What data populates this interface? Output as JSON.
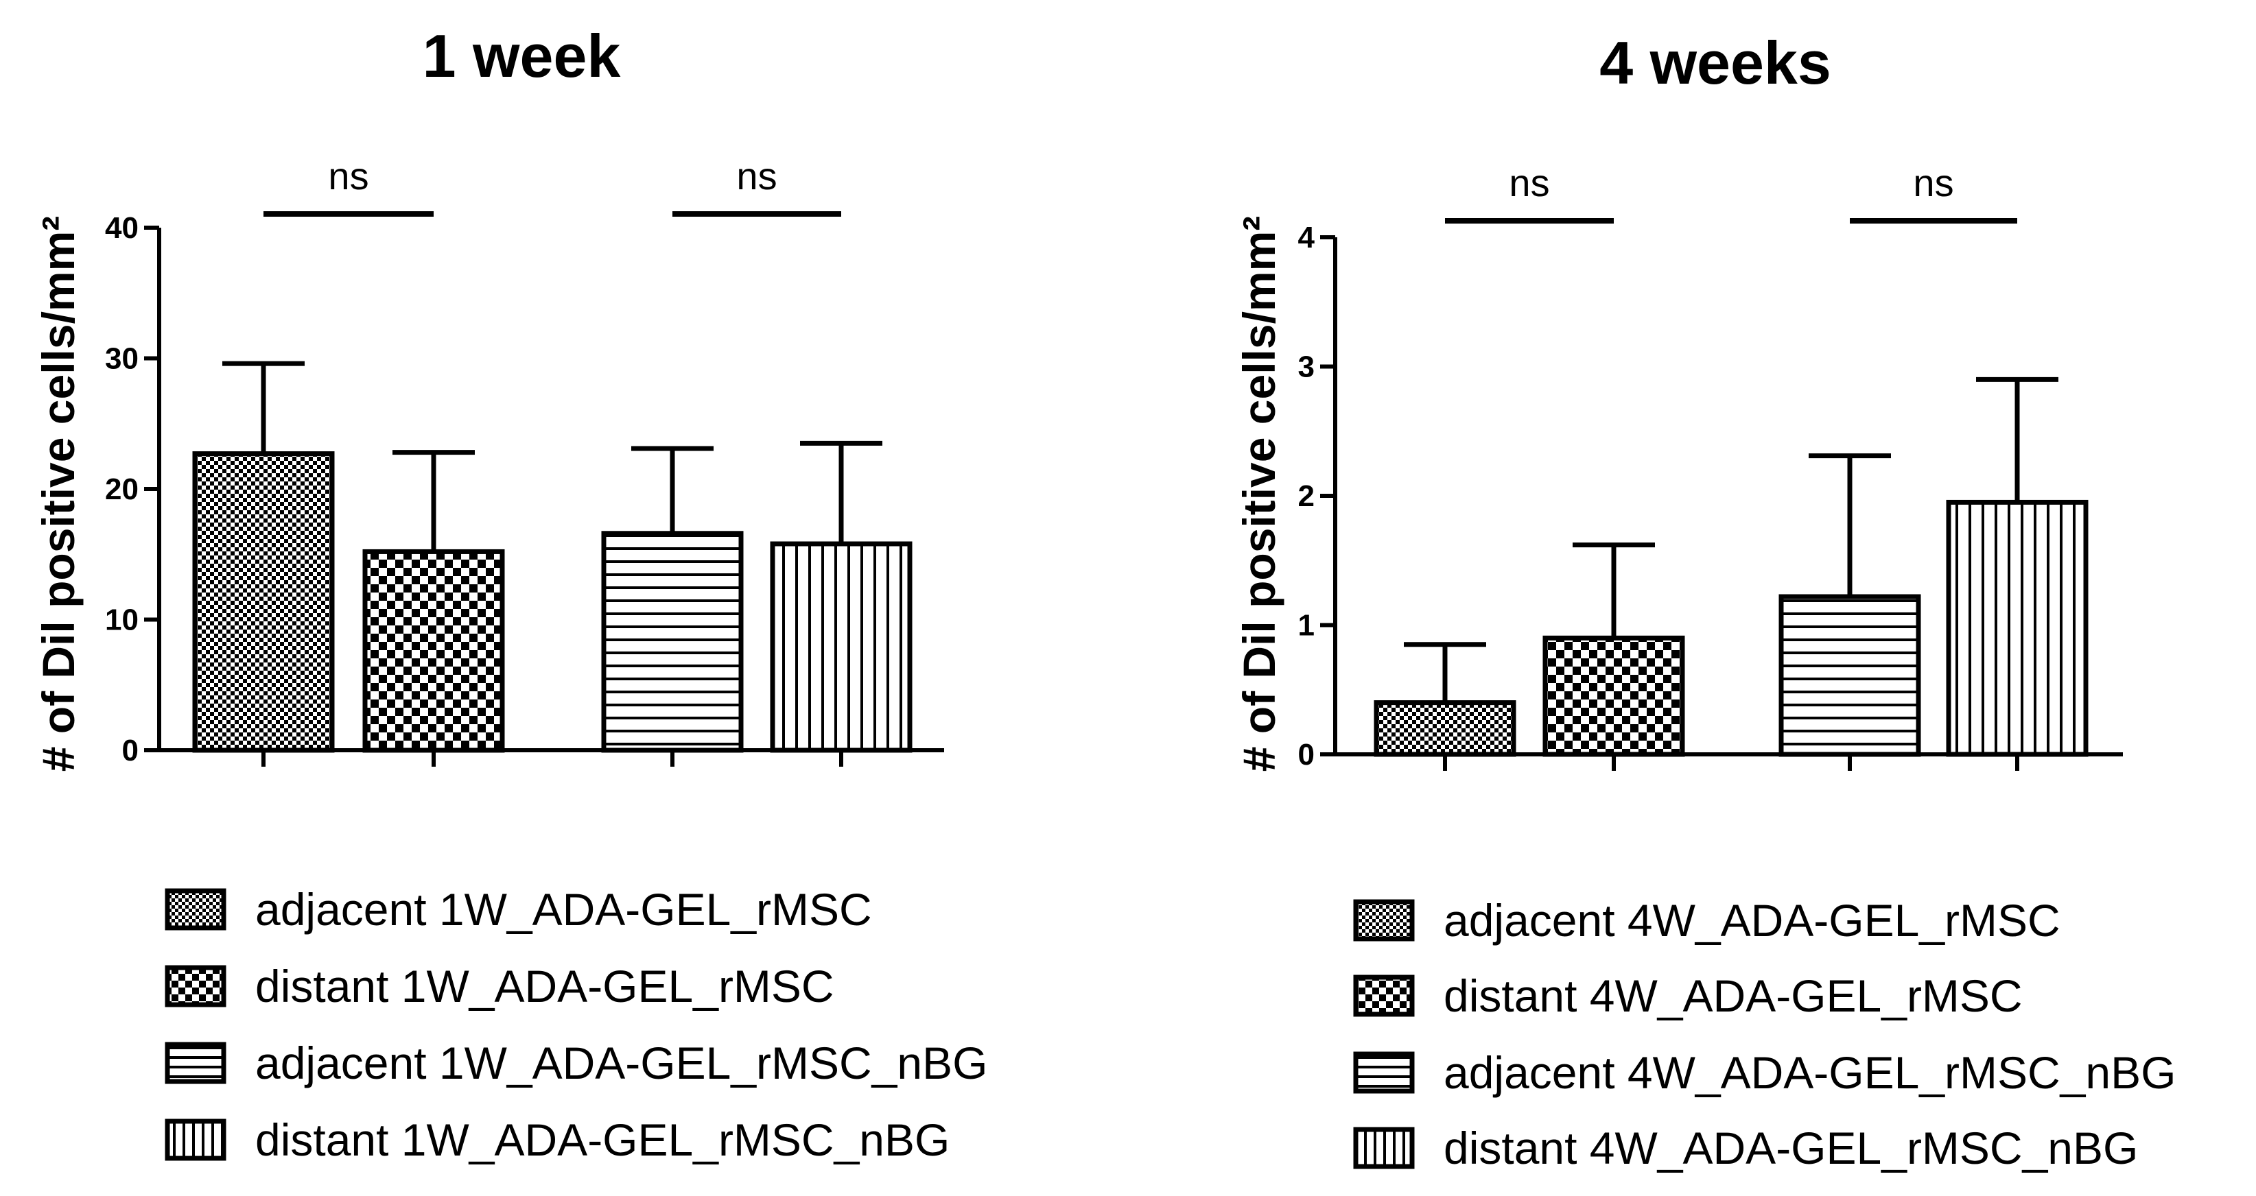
{
  "chart_data": [
    {
      "type": "bar",
      "title": "1 week",
      "ylabel": "# of Dil positive cells/mm²",
      "xlabel": "",
      "ylim": [
        0,
        40
      ],
      "yticks": [
        0,
        10,
        20,
        30,
        40
      ],
      "categories": [
        "adjacent 1W_ADA-GEL_rMSC",
        "distant 1W_ADA-GEL_rMSC",
        "adjacent 1W_ADA-GEL_rMSC_nBG",
        "distant 1W_ADA-GEL_rMSC_nBG"
      ],
      "values": [
        22.7,
        15.2,
        16.6,
        15.8
      ],
      "errors": [
        6.9,
        7.6,
        6.5,
        7.7
      ],
      "patterns": [
        "fine-check",
        "check",
        "horizontal",
        "vertical"
      ],
      "significance": [
        {
          "groups": [
            0,
            1
          ],
          "label": "ns"
        },
        {
          "groups": [
            2,
            3
          ],
          "label": "ns"
        }
      ],
      "legend_position": "bottom"
    },
    {
      "type": "bar",
      "title": "4 weeks",
      "ylabel": "# of Dil positive cells/mm²",
      "xlabel": "",
      "ylim": [
        0,
        4
      ],
      "yticks": [
        0,
        1,
        2,
        3,
        4
      ],
      "categories": [
        "adjacent 4W_ADA-GEL_rMSC",
        "distant 4W_ADA-GEL_rMSC",
        "adjacent 4W_ADA-GEL_rMSC_nBG",
        "distant 4W_ADA-GEL_rMSC_nBG"
      ],
      "values": [
        0.4,
        0.9,
        1.22,
        1.95
      ],
      "errors": [
        0.45,
        0.72,
        1.09,
        0.95
      ],
      "patterns": [
        "fine-check",
        "check",
        "horizontal",
        "vertical"
      ],
      "significance": [
        {
          "groups": [
            0,
            1
          ],
          "label": "ns"
        },
        {
          "groups": [
            2,
            3
          ],
          "label": "ns"
        }
      ],
      "legend_position": "bottom"
    }
  ],
  "colors": {
    "ink": "#000000",
    "background": "#ffffff"
  }
}
